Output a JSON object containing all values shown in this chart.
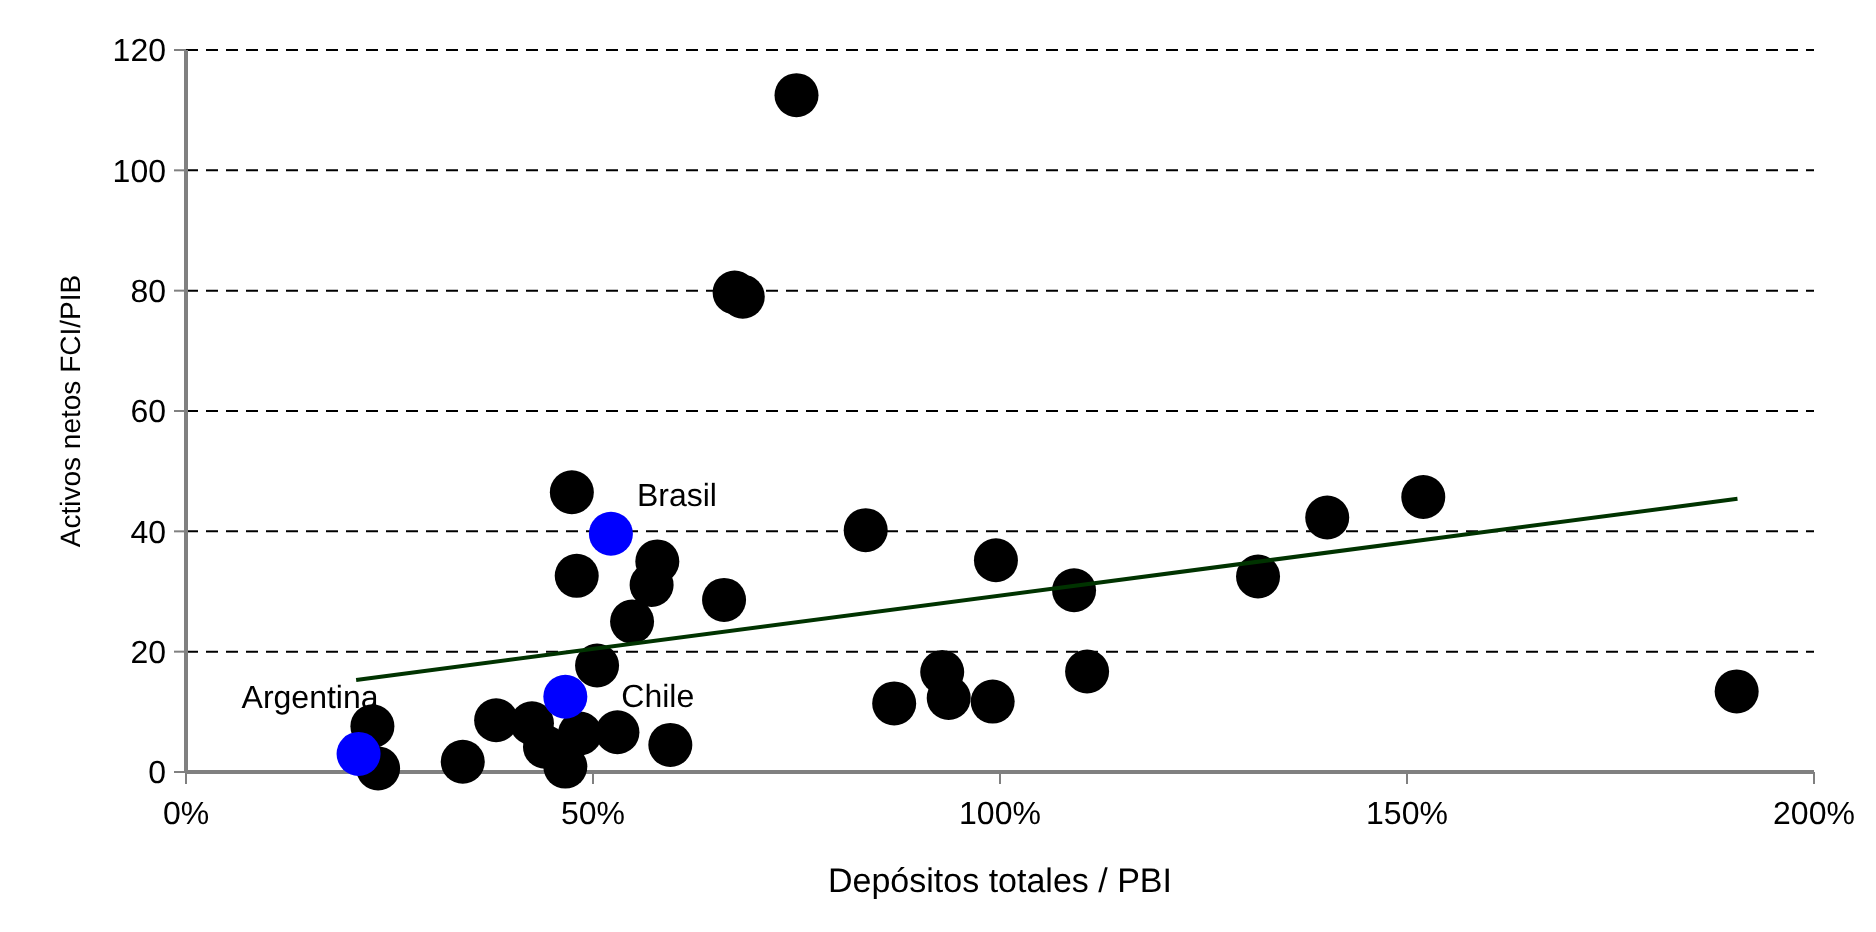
{
  "chart_data": {
    "type": "scatter",
    "xlabel": "Depósitos totales / PBI",
    "ylabel": "Activos netos FCI/PIB",
    "xlim": [
      0,
      200
    ],
    "xticks": [
      {
        "value": 0,
        "label": "0%"
      },
      {
        "value": 50,
        "label": "50%"
      },
      {
        "value": 100,
        "label": "100%"
      },
      {
        "value": 150,
        "label": "150%"
      },
      {
        "value": 200,
        "label": "200%"
      }
    ],
    "ylim": [
      0,
      120
    ],
    "yticks": [
      0,
      20,
      40,
      60,
      80,
      100,
      120
    ],
    "grid": "y",
    "series": [
      {
        "marker": "circle",
        "color": "#000000",
        "x": [
          22.9,
          23.6,
          34.0,
          38.1,
          42.5,
          44.1,
          46.6,
          48.4,
          53.0,
          59.5,
          50.5,
          54.8,
          57.2,
          57.9,
          48.0,
          47.4,
          66.1,
          67.4,
          68.4,
          75.0,
          83.5,
          87.0,
          92.9,
          93.7,
          99.1,
          99.5,
          109.1,
          110.7,
          131.7,
          140.2,
          152.0,
          190.5
        ],
        "values": [
          7.6,
          0.6,
          1.7,
          8.6,
          8.1,
          4.2,
          0.9,
          6.4,
          6.6,
          4.5,
          17.7,
          25.0,
          31.1,
          35.0,
          32.6,
          46.5,
          28.6,
          79.7,
          79.0,
          112.5,
          40.2,
          11.4,
          16.6,
          12.3,
          11.7,
          35.2,
          30.2,
          16.7,
          32.5,
          42.3,
          45.7,
          13.4
        ]
      },
      {
        "marker": "circle",
        "color": "#0000ff",
        "x": [
          21.2,
          46.6,
          52.2
        ],
        "values": [
          3.0,
          12.5,
          39.6
        ]
      },
      {
        "type": "line",
        "color": "#003300",
        "x": [
          20.9,
          190.6
        ],
        "values": [
          15.3,
          45.4
        ]
      }
    ],
    "annotations": [
      {
        "text": "Argentina",
        "x": 21.2,
        "y": 3.0
      },
      {
        "text": "Chile",
        "x": 46.6,
        "y": 12.5
      },
      {
        "text": "Brasil",
        "x": 52.2,
        "y": 39.6
      }
    ]
  }
}
